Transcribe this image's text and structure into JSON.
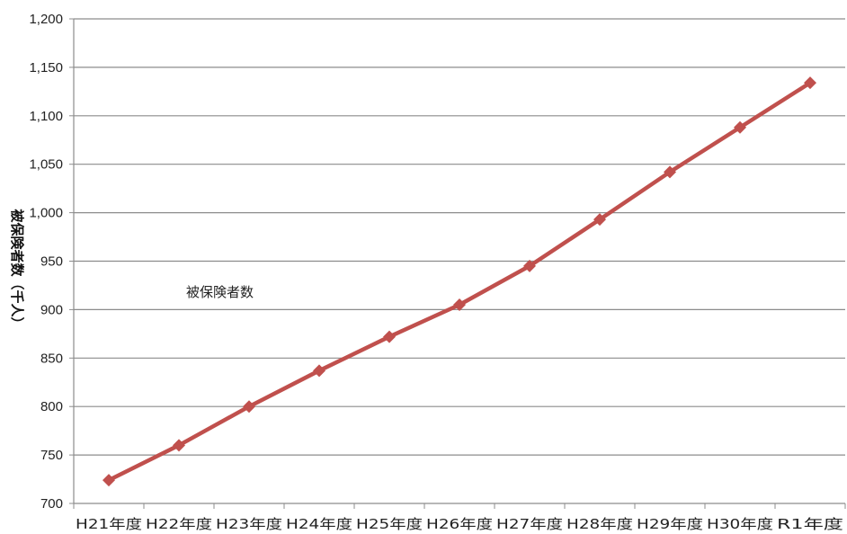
{
  "chart_data": {
    "type": "line",
    "title": "",
    "xlabel": "",
    "ylabel": "被保険者数（千人）",
    "categories": [
      "H21年度",
      "H22年度",
      "H23年度",
      "H24年度",
      "H25年度",
      "H26年度",
      "H27年度",
      "H28年度",
      "H29年度",
      "H30年度",
      "R1年度"
    ],
    "series": [
      {
        "name": "被保険者数",
        "values": [
          724,
          760,
          800,
          837,
          872,
          905,
          945,
          993,
          1042,
          1088,
          1134
        ]
      }
    ],
    "ylim": [
      700,
      1200
    ],
    "yticks": [
      700,
      750,
      800,
      850,
      900,
      950,
      1000,
      1050,
      1100,
      1150,
      1200
    ],
    "ytick_labels": [
      "700",
      "750",
      "800",
      "850",
      "900",
      "950",
      "1,000",
      "1,050",
      "1,100",
      "1,150",
      "1,200"
    ],
    "grid": "horizontal",
    "marker": "diamond",
    "colors": {
      "line": "#c0504d",
      "grid": "#8c8c8c",
      "axis": "#8c8c8c"
    }
  }
}
